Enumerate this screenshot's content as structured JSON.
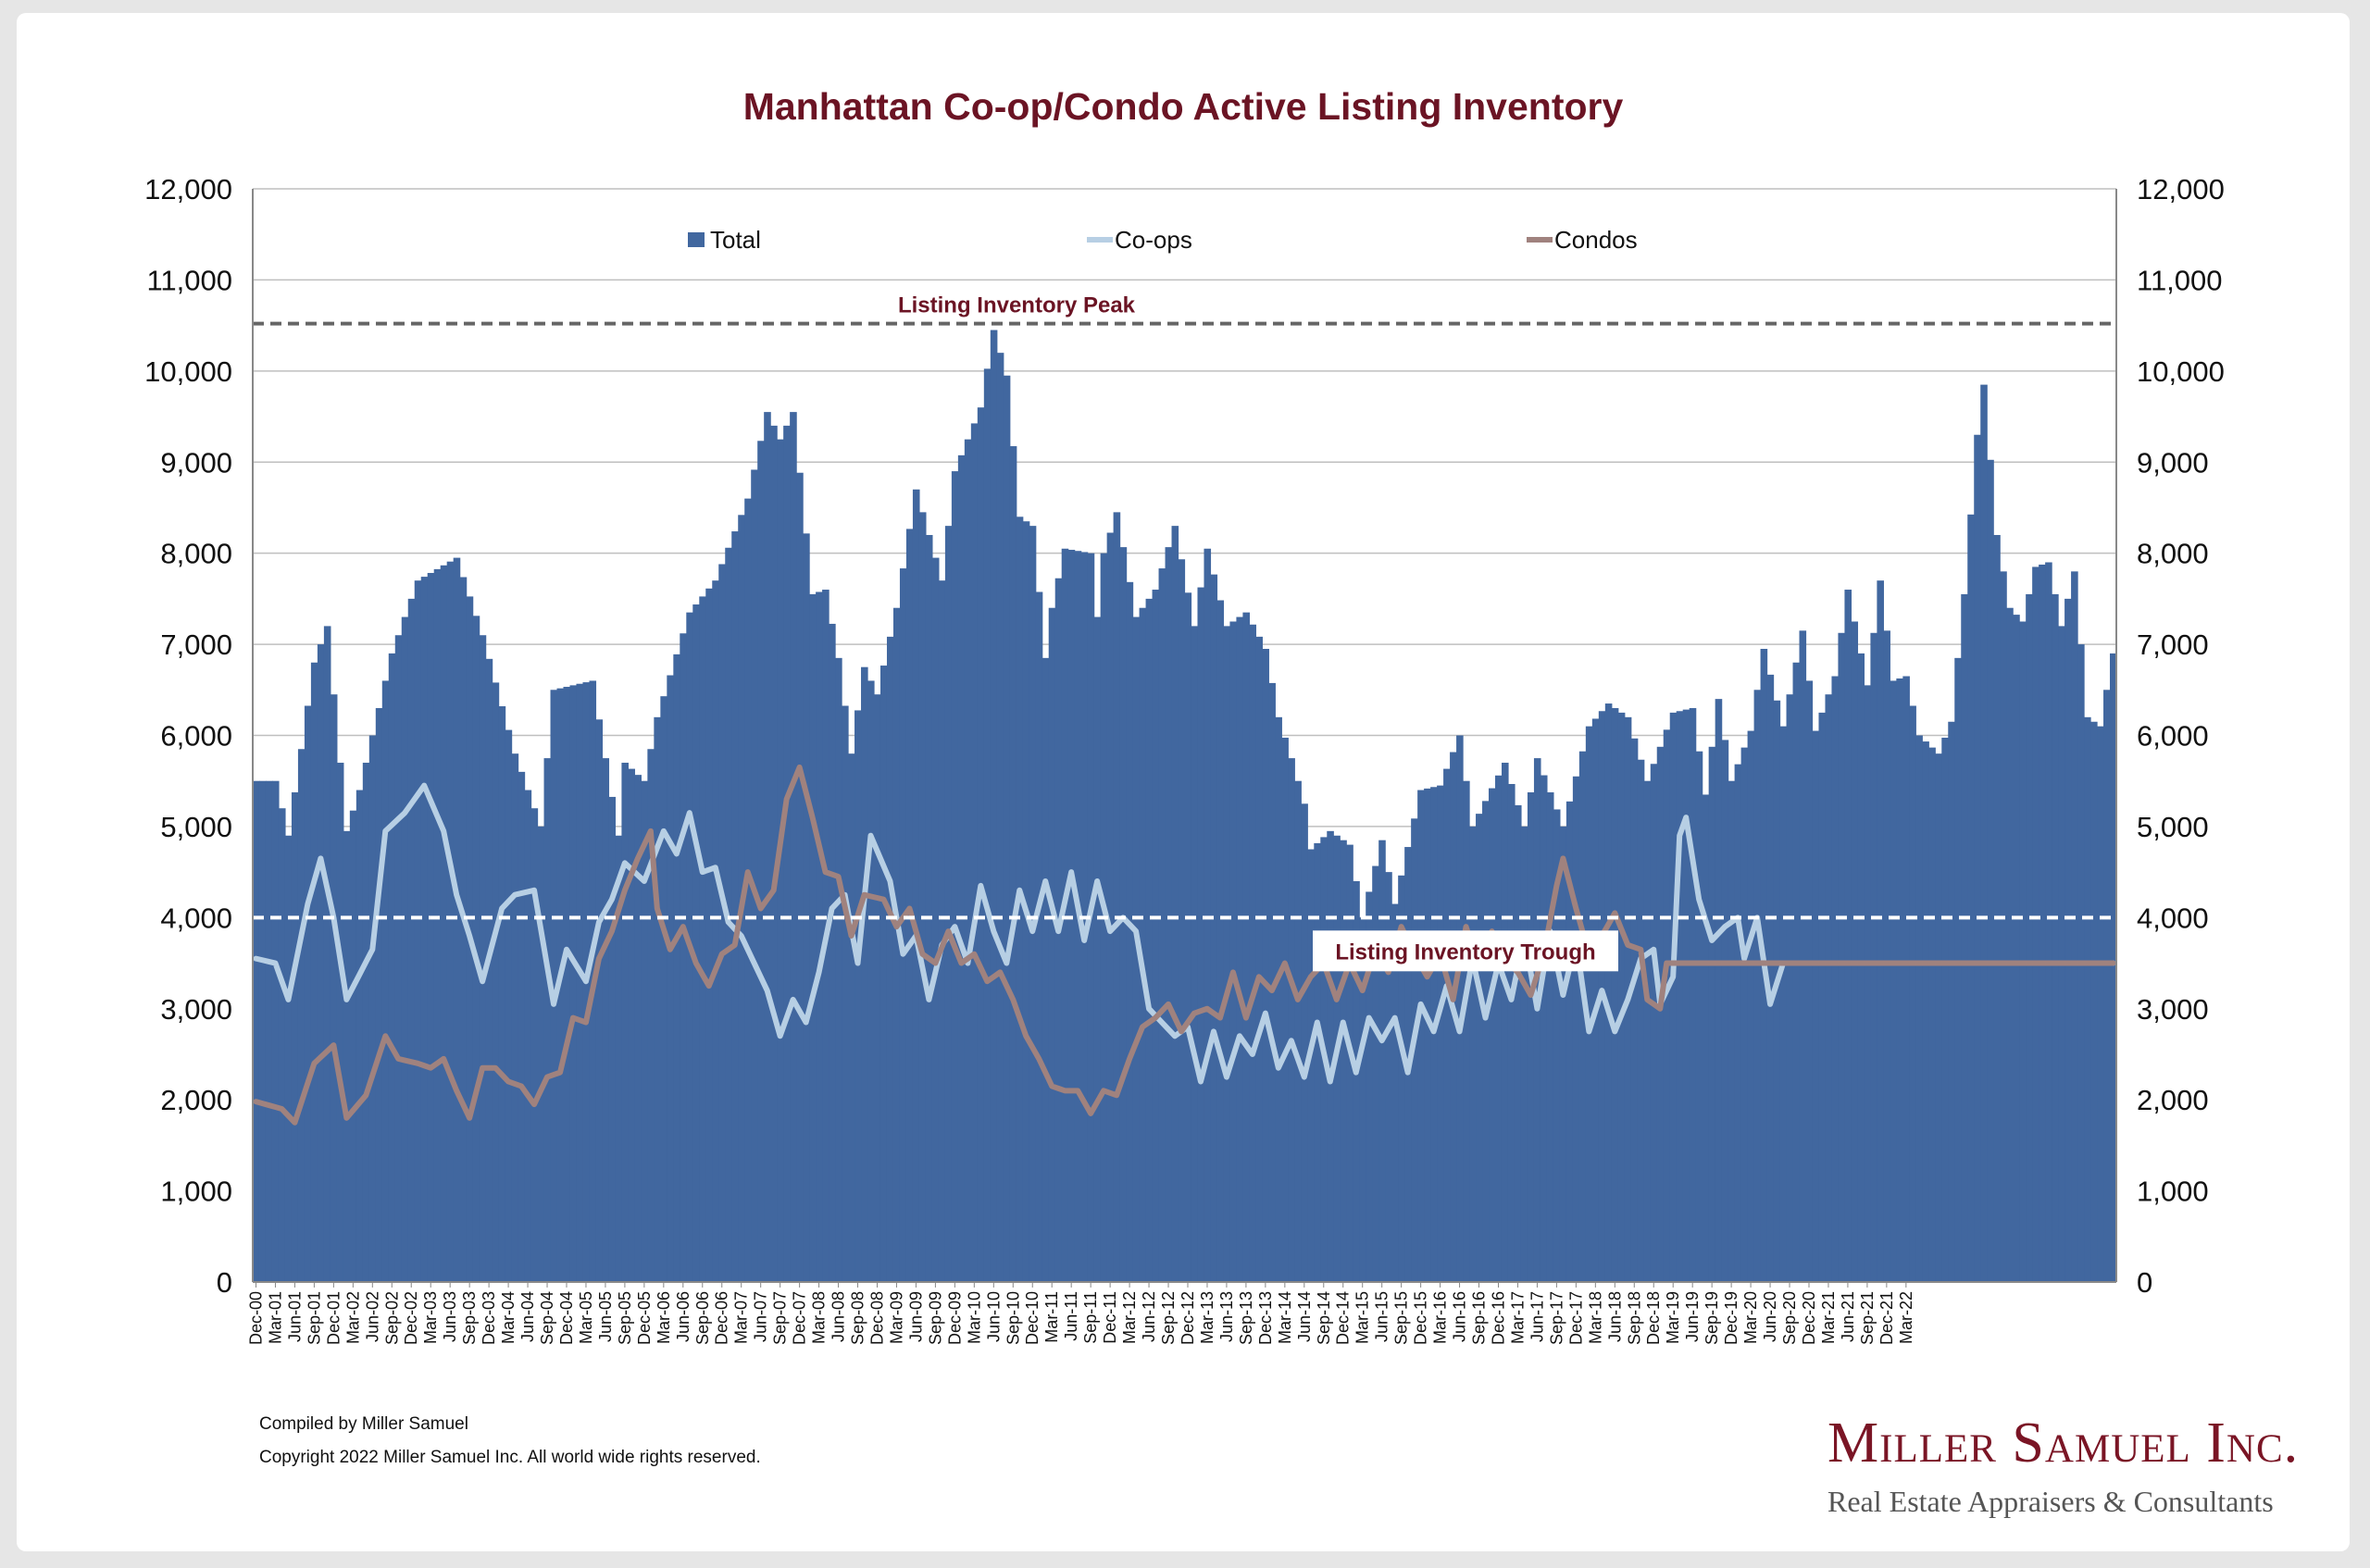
{
  "footer": {
    "compiled": "Compiled by Miller Samuel",
    "copyright": "Copyright 2022 Miller Samuel Inc.  All world wide rights reserved.",
    "brand_name": "Miller Samuel Inc.",
    "brand_tagline": "Real Estate Appraisers & Consultants"
  },
  "colors": {
    "total": "#41679f",
    "coops": "#b7cfe4",
    "condos": "#a0827e",
    "title": "#6b1424",
    "reference_line": "#666666",
    "brand": "#7a1525"
  },
  "chart_data": {
    "type": "bar",
    "title": "Manhattan Co-op/Condo Active Listing Inventory",
    "xlabel": "",
    "ylabel": "",
    "ylim": [
      0,
      12000
    ],
    "yticks": [
      0,
      1000,
      2000,
      3000,
      4000,
      5000,
      6000,
      7000,
      8000,
      9000,
      10000,
      11000,
      12000
    ],
    "ytick_labels": [
      "0",
      "1,000",
      "2,000",
      "3,000",
      "4,000",
      "5,000",
      "6,000",
      "7,000",
      "8,000",
      "9,000",
      "10,000",
      "11,000",
      "12,000"
    ],
    "dual_y_axis": true,
    "grid": true,
    "legend_position": "top",
    "start_month": "Dec-00",
    "end_month": "Mar-22",
    "x_tick_labels": [
      "Dec-00",
      "Mar-01",
      "Jun-01",
      "Sep-01",
      "Dec-01",
      "Mar-02",
      "Jun-02",
      "Sep-02",
      "Dec-02",
      "Mar-03",
      "Jun-03",
      "Sep-03",
      "Dec-03",
      "Mar-04",
      "Jun-04",
      "Sep-04",
      "Dec-04",
      "Mar-05",
      "Jun-05",
      "Sep-05",
      "Dec-05",
      "Mar-06",
      "Jun-06",
      "Sep-06",
      "Dec-06",
      "Mar-07",
      "Jun-07",
      "Sep-07",
      "Dec-07",
      "Mar-08",
      "Jun-08",
      "Sep-08",
      "Dec-08",
      "Mar-09",
      "Jun-09",
      "Sep-09",
      "Dec-09",
      "Mar-10",
      "Jun-10",
      "Sep-10",
      "Dec-10",
      "Mar-11",
      "Jun-11",
      "Sep-11",
      "Dec-11",
      "Mar-12",
      "Jun-12",
      "Sep-12",
      "Dec-12",
      "Mar-13",
      "Jun-13",
      "Sep-13",
      "Dec-13",
      "Mar-14",
      "Jun-14",
      "Sep-14",
      "Dec-14",
      "Mar-15",
      "Jun-15",
      "Sep-15",
      "Dec-15",
      "Mar-16",
      "Jun-16",
      "Sep-16",
      "Dec-16",
      "Mar-17",
      "Jun-17",
      "Sep-17",
      "Dec-17",
      "Mar-18",
      "Jun-18",
      "Sep-18",
      "Dec-18",
      "Mar-19",
      "Jun-19",
      "Sep-19",
      "Dec-19",
      "Mar-20",
      "Jun-20",
      "Sep-20",
      "Dec-20",
      "Mar-21",
      "Jun-21",
      "Sep-21",
      "Dec-21",
      "Mar-22"
    ],
    "anchors": {
      "total": [
        [
          0,
          5500
        ],
        [
          3,
          5500
        ],
        [
          5,
          4900
        ],
        [
          9,
          6800
        ],
        [
          11,
          7200
        ],
        [
          14,
          4950
        ],
        [
          16,
          5400
        ],
        [
          21,
          6900
        ],
        [
          25,
          7700
        ],
        [
          31,
          7950
        ],
        [
          35,
          7100
        ],
        [
          40,
          5800
        ],
        [
          44,
          5000
        ],
        [
          46,
          6500
        ],
        [
          52,
          6600
        ],
        [
          56,
          4900
        ],
        [
          57,
          5700
        ],
        [
          60,
          5500
        ],
        [
          62,
          6200
        ],
        [
          67,
          7350
        ],
        [
          71,
          7700
        ],
        [
          76,
          8600
        ],
        [
          79,
          9550
        ],
        [
          81,
          9250
        ],
        [
          83,
          9550
        ],
        [
          86,
          7550
        ],
        [
          88,
          7600
        ],
        [
          90,
          6850
        ],
        [
          92,
          5800
        ],
        [
          94,
          6750
        ],
        [
          96,
          6450
        ],
        [
          99,
          7400
        ],
        [
          102,
          8700
        ],
        [
          106,
          7700
        ],
        [
          108,
          8900
        ],
        [
          112,
          9600
        ],
        [
          114,
          10450
        ],
        [
          116,
          9950
        ],
        [
          118,
          8400
        ],
        [
          120,
          8300
        ],
        [
          122,
          6850
        ],
        [
          123,
          7400
        ],
        [
          125,
          8050
        ],
        [
          129,
          8000
        ],
        [
          130,
          7300
        ],
        [
          131,
          8000
        ],
        [
          133,
          8450
        ],
        [
          136,
          7300
        ],
        [
          139,
          7600
        ],
        [
          142,
          8300
        ],
        [
          145,
          7200
        ],
        [
          147,
          8050
        ],
        [
          150,
          7200
        ],
        [
          153,
          7350
        ],
        [
          156,
          6950
        ],
        [
          158,
          6200
        ],
        [
          160,
          5750
        ],
        [
          162,
          5250
        ],
        [
          163,
          4750
        ],
        [
          166,
          4950
        ],
        [
          169,
          4800
        ],
        [
          171,
          4000
        ],
        [
          174,
          4850
        ],
        [
          176,
          4150
        ],
        [
          180,
          5400
        ],
        [
          183,
          5450
        ],
        [
          186,
          6000
        ],
        [
          188,
          5000
        ],
        [
          193,
          5700
        ],
        [
          196,
          5000
        ],
        [
          198,
          5750
        ],
        [
          202,
          5000
        ],
        [
          206,
          6100
        ],
        [
          209,
          6350
        ],
        [
          212,
          6200
        ],
        [
          215,
          5500
        ],
        [
          219,
          6250
        ],
        [
          222,
          6300
        ],
        [
          224,
          5350
        ],
        [
          226,
          6400
        ],
        [
          228,
          5500
        ],
        [
          231,
          6050
        ],
        [
          233,
          6950
        ],
        [
          236,
          6100
        ],
        [
          239,
          7150
        ],
        [
          241,
          6050
        ],
        [
          244,
          6650
        ],
        [
          246,
          7600
        ],
        [
          249,
          6550
        ],
        [
          251,
          7700
        ],
        [
          253,
          6600
        ],
        [
          255,
          6650
        ],
        [
          257,
          6000
        ],
        [
          260,
          5800
        ],
        [
          262,
          6150
        ],
        [
          264,
          7550
        ],
        [
          266,
          9300
        ],
        [
          267,
          9850
        ],
        [
          269,
          8200
        ],
        [
          271,
          7400
        ],
        [
          273,
          7250
        ],
        [
          275,
          7850
        ],
        [
          277,
          7900
        ],
        [
          279,
          7200
        ],
        [
          281,
          7800
        ],
        [
          283,
          6200
        ],
        [
          285,
          6100
        ],
        [
          287,
          6900
        ]
      ],
      "coops": [
        [
          0,
          3550
        ],
        [
          3,
          3500
        ],
        [
          5,
          3100
        ],
        [
          8,
          4150
        ],
        [
          10,
          4650
        ],
        [
          12,
          4000
        ],
        [
          14,
          3100
        ],
        [
          18,
          3650
        ],
        [
          20,
          4950
        ],
        [
          23,
          5150
        ],
        [
          26,
          5450
        ],
        [
          29,
          4950
        ],
        [
          31,
          4250
        ],
        [
          33,
          3800
        ],
        [
          35,
          3300
        ],
        [
          38,
          4100
        ],
        [
          40,
          4250
        ],
        [
          43,
          4300
        ],
        [
          46,
          3050
        ],
        [
          48,
          3650
        ],
        [
          51,
          3300
        ],
        [
          53,
          3950
        ],
        [
          55,
          4200
        ],
        [
          57,
          4600
        ],
        [
          60,
          4400
        ],
        [
          63,
          4950
        ],
        [
          65,
          4700
        ],
        [
          67,
          5150
        ],
        [
          69,
          4500
        ],
        [
          71,
          4550
        ],
        [
          73,
          3950
        ],
        [
          75,
          3800
        ],
        [
          77,
          3500
        ],
        [
          79,
          3200
        ],
        [
          81,
          2700
        ],
        [
          83,
          3100
        ],
        [
          85,
          2850
        ],
        [
          87,
          3400
        ],
        [
          89,
          4100
        ],
        [
          91,
          4250
        ],
        [
          93,
          3500
        ],
        [
          95,
          4900
        ],
        [
          98,
          4400
        ],
        [
          100,
          3600
        ],
        [
          102,
          3800
        ],
        [
          104,
          3100
        ],
        [
          106,
          3700
        ],
        [
          108,
          3900
        ],
        [
          110,
          3500
        ],
        [
          112,
          4350
        ],
        [
          114,
          3850
        ],
        [
          116,
          3500
        ],
        [
          118,
          4300
        ],
        [
          120,
          3850
        ],
        [
          122,
          4400
        ],
        [
          124,
          3850
        ],
        [
          126,
          4500
        ],
        [
          128,
          3750
        ],
        [
          130,
          4400
        ],
        [
          132,
          3850
        ],
        [
          134,
          4000
        ],
        [
          136,
          3850
        ],
        [
          138,
          3000
        ],
        [
          140,
          2850
        ],
        [
          142,
          2700
        ],
        [
          144,
          2800
        ],
        [
          146,
          2200
        ],
        [
          148,
          2750
        ],
        [
          150,
          2250
        ],
        [
          152,
          2700
        ],
        [
          154,
          2500
        ],
        [
          156,
          2950
        ],
        [
          158,
          2350
        ],
        [
          160,
          2650
        ],
        [
          162,
          2250
        ],
        [
          164,
          2850
        ],
        [
          166,
          2200
        ],
        [
          168,
          2850
        ],
        [
          170,
          2300
        ],
        [
          172,
          2900
        ],
        [
          174,
          2650
        ],
        [
          176,
          2900
        ],
        [
          178,
          2300
        ],
        [
          180,
          3050
        ],
        [
          182,
          2750
        ],
        [
          184,
          3250
        ],
        [
          186,
          2750
        ],
        [
          188,
          3550
        ],
        [
          190,
          2900
        ],
        [
          192,
          3500
        ],
        [
          194,
          3100
        ],
        [
          196,
          3800
        ],
        [
          198,
          3000
        ],
        [
          200,
          3850
        ],
        [
          202,
          3150
        ],
        [
          204,
          3750
        ],
        [
          206,
          2750
        ],
        [
          208,
          3200
        ],
        [
          210,
          2750
        ],
        [
          212,
          3100
        ],
        [
          214,
          3550
        ],
        [
          216,
          3650
        ],
        [
          217,
          3050
        ],
        [
          219,
          3350
        ],
        [
          220,
          4900
        ],
        [
          221,
          5100
        ],
        [
          223,
          4200
        ],
        [
          225,
          3750
        ],
        [
          227,
          3900
        ],
        [
          229,
          4000
        ],
        [
          230,
          3550
        ],
        [
          232,
          4000
        ],
        [
          234,
          3050
        ],
        [
          236,
          3500
        ],
        [
          287,
          3500
        ]
      ],
      "condos": [
        [
          0,
          1980
        ],
        [
          4,
          1900
        ],
        [
          6,
          1750
        ],
        [
          9,
          2400
        ],
        [
          12,
          2600
        ],
        [
          14,
          1800
        ],
        [
          17,
          2050
        ],
        [
          20,
          2700
        ],
        [
          22,
          2450
        ],
        [
          25,
          2400
        ],
        [
          27,
          2350
        ],
        [
          29,
          2450
        ],
        [
          31,
          2100
        ],
        [
          33,
          1800
        ],
        [
          35,
          2350
        ],
        [
          37,
          2350
        ],
        [
          39,
          2200
        ],
        [
          41,
          2150
        ],
        [
          43,
          1950
        ],
        [
          45,
          2250
        ],
        [
          47,
          2300
        ],
        [
          49,
          2900
        ],
        [
          51,
          2850
        ],
        [
          53,
          3550
        ],
        [
          55,
          3850
        ],
        [
          57,
          4300
        ],
        [
          59,
          4650
        ],
        [
          61,
          4950
        ],
        [
          62,
          4100
        ],
        [
          64,
          3650
        ],
        [
          66,
          3900
        ],
        [
          68,
          3500
        ],
        [
          70,
          3250
        ],
        [
          72,
          3600
        ],
        [
          74,
          3700
        ],
        [
          76,
          4500
        ],
        [
          78,
          4100
        ],
        [
          80,
          4300
        ],
        [
          82,
          5300
        ],
        [
          84,
          5650
        ],
        [
          86,
          5100
        ],
        [
          88,
          4500
        ],
        [
          90,
          4450
        ],
        [
          92,
          3800
        ],
        [
          94,
          4250
        ],
        [
          97,
          4200
        ],
        [
          99,
          3900
        ],
        [
          101,
          4100
        ],
        [
          103,
          3600
        ],
        [
          105,
          3500
        ],
        [
          107,
          3850
        ],
        [
          109,
          3500
        ],
        [
          111,
          3600
        ],
        [
          113,
          3300
        ],
        [
          115,
          3400
        ],
        [
          117,
          3100
        ],
        [
          119,
          2700
        ],
        [
          121,
          2450
        ],
        [
          123,
          2150
        ],
        [
          125,
          2100
        ],
        [
          127,
          2100
        ],
        [
          129,
          1850
        ],
        [
          131,
          2100
        ],
        [
          133,
          2050
        ],
        [
          135,
          2450
        ],
        [
          137,
          2800
        ],
        [
          139,
          2900
        ],
        [
          141,
          3050
        ],
        [
          143,
          2750
        ],
        [
          145,
          2950
        ],
        [
          147,
          3000
        ],
        [
          149,
          2900
        ],
        [
          151,
          3400
        ],
        [
          153,
          2900
        ],
        [
          155,
          3350
        ],
        [
          157,
          3200
        ],
        [
          159,
          3500
        ],
        [
          161,
          3100
        ],
        [
          163,
          3350
        ],
        [
          165,
          3500
        ],
        [
          167,
          3100
        ],
        [
          169,
          3500
        ],
        [
          171,
          3200
        ],
        [
          173,
          3650
        ],
        [
          175,
          3400
        ],
        [
          177,
          3900
        ],
        [
          179,
          3600
        ],
        [
          181,
          3350
        ],
        [
          183,
          3600
        ],
        [
          185,
          3100
        ],
        [
          187,
          3900
        ],
        [
          189,
          3450
        ],
        [
          191,
          3850
        ],
        [
          193,
          3550
        ],
        [
          195,
          3400
        ],
        [
          197,
          3150
        ],
        [
          199,
          3600
        ],
        [
          201,
          4350
        ],
        [
          202,
          4650
        ],
        [
          204,
          4100
        ],
        [
          206,
          3600
        ],
        [
          208,
          3800
        ],
        [
          210,
          4050
        ],
        [
          212,
          3700
        ],
        [
          214,
          3650
        ],
        [
          215,
          3100
        ],
        [
          217,
          3000
        ],
        [
          218,
          3500
        ],
        [
          287,
          3500
        ]
      ]
    },
    "series": [
      {
        "name": "Total",
        "kind": "bar"
      },
      {
        "name": "Co-ops",
        "kind": "line"
      },
      {
        "name": "Condos",
        "kind": "line"
      }
    ],
    "reference_lines": [
      {
        "label": "Listing Inventory Peak",
        "value": 10520
      },
      {
        "label": "Listing Inventory Trough",
        "value": 4000
      }
    ]
  }
}
